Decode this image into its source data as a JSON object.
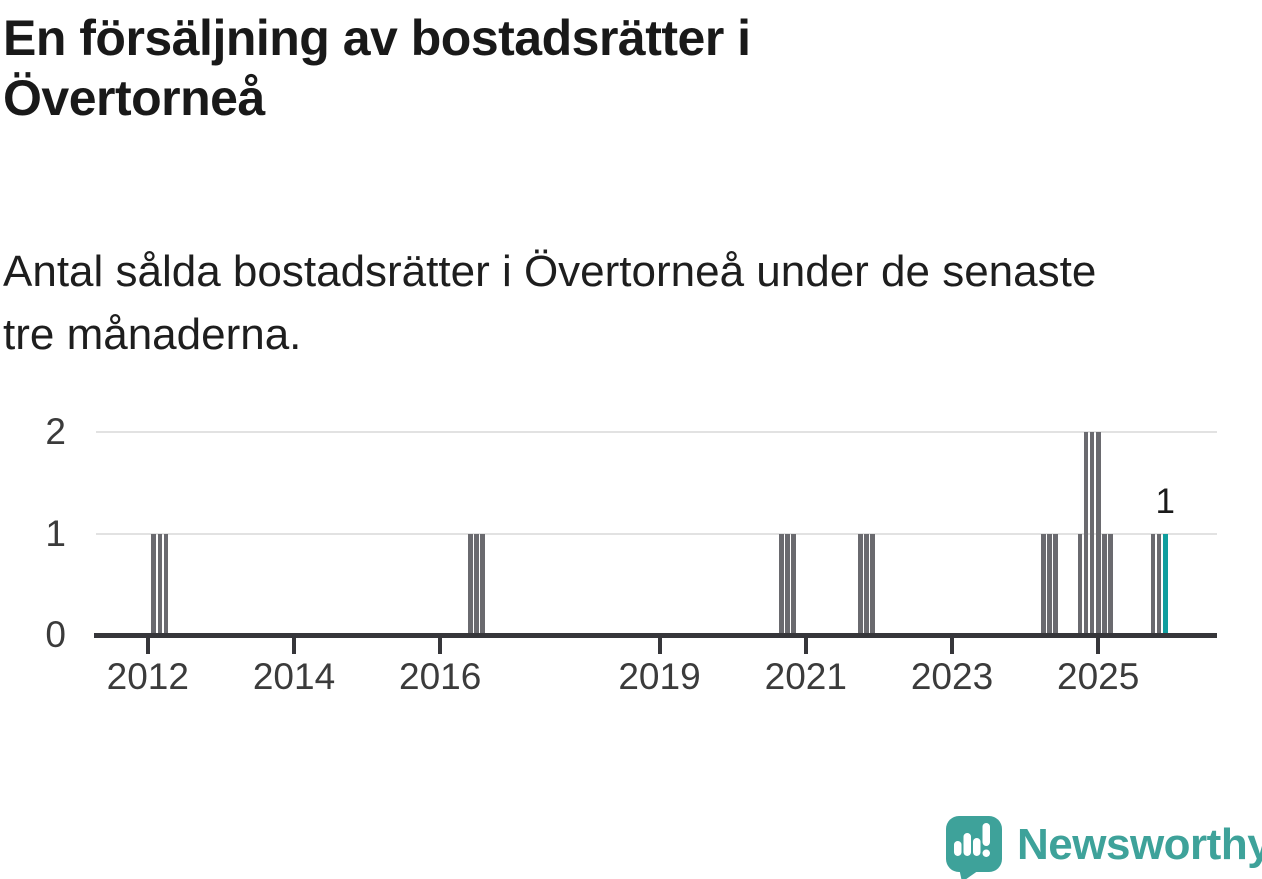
{
  "header": {
    "title": "En försäljning av bostadsrätter i Övertorneå",
    "title_lines": [
      "En försäljning av bostadsrätter i",
      "Övertorneå"
    ],
    "subtitle": "Antal sålda bostadsrätter i Övertorneå under de senaste tre månaderna.",
    "subtitle_lines": [
      "Antal sålda bostadsrätter i Övertorneå under de senaste",
      "tre månaderna."
    ]
  },
  "chart_data": {
    "type": "bar",
    "title": "En försäljning av bostadsrätter i Övertorneå",
    "subtitle": "Antal sålda bostadsrätter i Övertorneå under de senaste tre månaderna.",
    "xlabel": "",
    "ylabel": "",
    "ylim": [
      0,
      2
    ],
    "yticks": [
      0,
      1,
      2
    ],
    "xticks": [
      2012,
      2014,
      2016,
      2019,
      2021,
      2023,
      2025
    ],
    "x_start_month": "2011-05",
    "x_end_month": "2026-08",
    "grid": "horizontal",
    "legend": "none",
    "annotation": {
      "text": "1",
      "month": "2025-12"
    },
    "colors": {
      "bar": "#6a6a6f",
      "highlight": "#109e9e",
      "axis": "#36363a",
      "grid": "#e2e2e2",
      "tick_label": "#3b3b3b"
    },
    "bars": [
      {
        "month": "2012-02",
        "value": 1
      },
      {
        "month": "2012-03",
        "value": 1
      },
      {
        "month": "2012-04",
        "value": 1
      },
      {
        "month": "2016-06",
        "value": 1
      },
      {
        "month": "2016-07",
        "value": 1
      },
      {
        "month": "2016-08",
        "value": 1
      },
      {
        "month": "2020-09",
        "value": 1
      },
      {
        "month": "2020-10",
        "value": 1
      },
      {
        "month": "2020-11",
        "value": 1
      },
      {
        "month": "2021-10",
        "value": 1
      },
      {
        "month": "2021-11",
        "value": 1
      },
      {
        "month": "2021-12",
        "value": 1
      },
      {
        "month": "2024-04",
        "value": 1
      },
      {
        "month": "2024-05",
        "value": 1
      },
      {
        "month": "2024-06",
        "value": 1
      },
      {
        "month": "2024-10",
        "value": 1
      },
      {
        "month": "2024-11",
        "value": 2
      },
      {
        "month": "2024-12",
        "value": 2
      },
      {
        "month": "2025-01",
        "value": 2
      },
      {
        "month": "2025-02",
        "value": 1
      },
      {
        "month": "2025-03",
        "value": 1
      },
      {
        "month": "2025-10",
        "value": 1
      },
      {
        "month": "2025-11",
        "value": 1
      },
      {
        "month": "2025-12",
        "value": 1,
        "highlight": true
      }
    ]
  },
  "footer": {
    "brand": "Newsworthy",
    "logo_color": "#3ea29a"
  }
}
